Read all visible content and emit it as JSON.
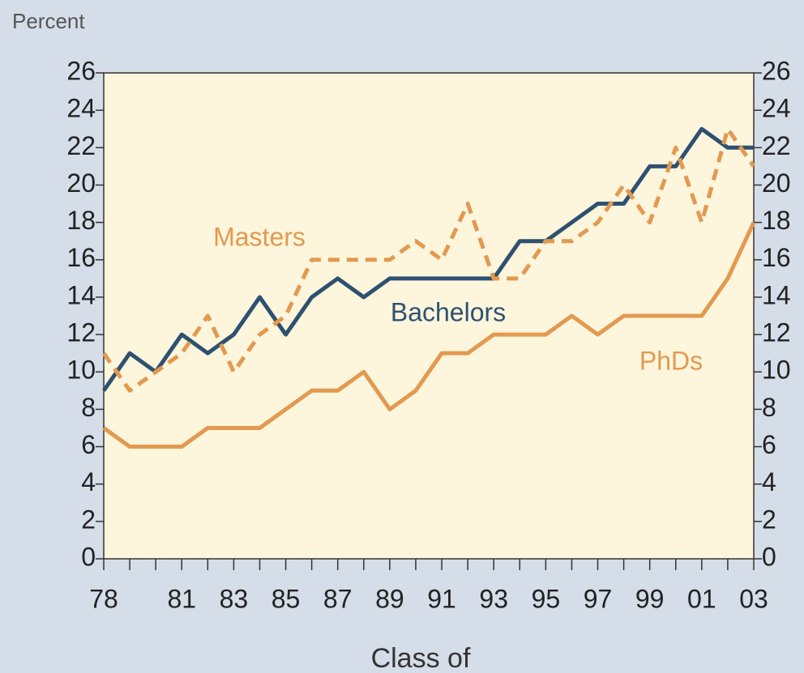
{
  "chart_data": {
    "type": "line",
    "y_label": "Percent",
    "x_label": "Class of",
    "categories": [
      "78",
      null,
      null,
      "81",
      null,
      "83",
      null,
      "85",
      null,
      "87",
      null,
      "89",
      null,
      "91",
      null,
      "93",
      null,
      "95",
      null,
      "97",
      null,
      "99",
      null,
      "01",
      null,
      "03"
    ],
    "series": [
      {
        "name": "Bachelors",
        "color": "#2f5171",
        "dashed": false,
        "values": [
          9,
          11,
          10,
          12,
          11,
          12,
          14,
          12,
          14,
          15,
          14,
          15,
          15,
          15,
          15,
          15,
          17,
          17,
          18,
          19,
          19,
          21,
          21,
          23,
          22,
          22
        ]
      },
      {
        "name": "Masters",
        "color": "#e39a50",
        "dashed": true,
        "values": [
          11,
          9,
          10,
          11,
          13,
          10,
          12,
          13,
          16,
          16,
          16,
          16,
          17,
          16,
          19,
          15,
          15,
          17,
          17,
          18,
          20,
          18,
          22,
          18,
          23,
          21
        ]
      },
      {
        "name": "PhDs",
        "color": "#e39a50",
        "dashed": false,
        "values": [
          7,
          6,
          6,
          6,
          7,
          7,
          7,
          8,
          9,
          9,
          10,
          8,
          9,
          11,
          11,
          12,
          12,
          12,
          13,
          12,
          13,
          13,
          13,
          13,
          15,
          18
        ]
      }
    ],
    "ylim": [
      0,
      26
    ],
    "yticks": [
      0,
      2,
      4,
      6,
      8,
      10,
      12,
      14,
      16,
      18,
      20,
      22,
      24,
      26
    ],
    "y2lim": [
      0,
      26
    ],
    "y2ticks": [
      0,
      2,
      4,
      6,
      8,
      10,
      12,
      14,
      16,
      18,
      20,
      22,
      24,
      26
    ],
    "background": "#fdf5dc"
  }
}
